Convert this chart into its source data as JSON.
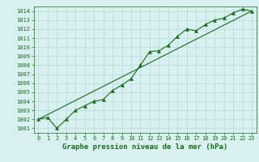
{
  "x": [
    0,
    1,
    2,
    3,
    4,
    5,
    6,
    7,
    8,
    9,
    10,
    11,
    12,
    13,
    14,
    15,
    16,
    17,
    18,
    19,
    20,
    21,
    22,
    23
  ],
  "pressure": [
    1002.0,
    1002.2,
    1001.0,
    1002.0,
    1003.0,
    1003.5,
    1004.0,
    1004.2,
    1005.2,
    1005.8,
    1006.5,
    1008.0,
    1009.5,
    1009.6,
    1010.2,
    1011.2,
    1012.0,
    1011.8,
    1012.5,
    1013.0,
    1013.2,
    1013.8,
    1014.2,
    1014.0
  ],
  "trend_x": [
    0,
    23
  ],
  "trend_y": [
    1002.0,
    1014.0
  ],
  "ylim": [
    1000.5,
    1014.5
  ],
  "yticks": [
    1001,
    1002,
    1003,
    1004,
    1005,
    1006,
    1007,
    1008,
    1009,
    1010,
    1011,
    1012,
    1013,
    1014
  ],
  "xticks": [
    0,
    1,
    2,
    3,
    4,
    5,
    6,
    7,
    8,
    9,
    10,
    11,
    12,
    13,
    14,
    15,
    16,
    17,
    18,
    19,
    20,
    21,
    22,
    23
  ],
  "xlabel": "Graphe pression niveau de la mer (hPa)",
  "line_color": "#1a6b1a",
  "trend_color": "#1a6b1a",
  "bg_color": "#d9f0f0",
  "grid_color": "#b8d8d8",
  "text_color": "#1a6b1a",
  "tick_fontsize": 5.0,
  "xlabel_fontsize": 6.5
}
